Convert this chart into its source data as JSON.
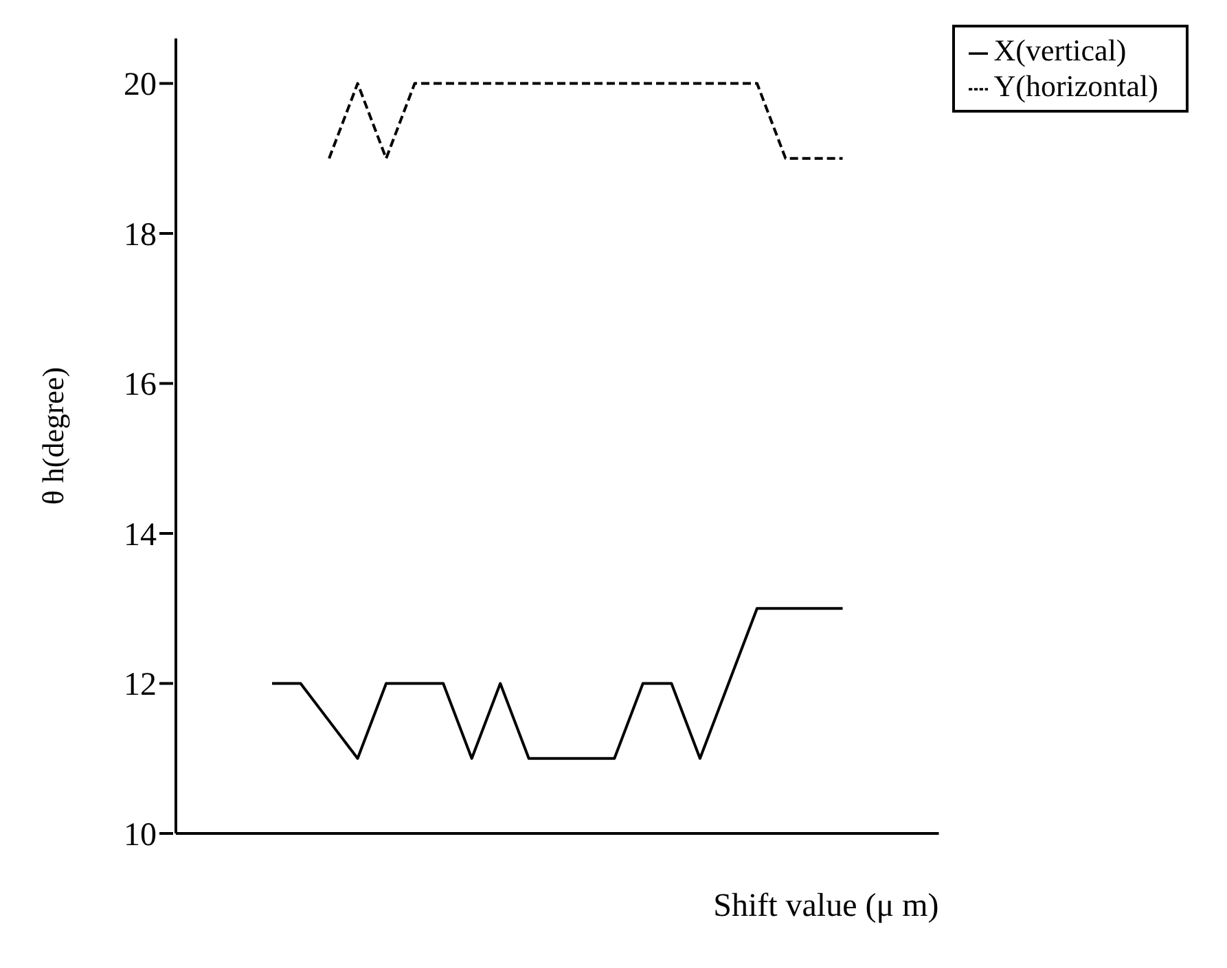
{
  "chart_data": {
    "type": "line",
    "xlabel": "Shift value (μ m)",
    "ylabel": "θ h(degree)",
    "categories": [
      null,
      null,
      null,
      null,
      null,
      null,
      null,
      null,
      null,
      null,
      null,
      null,
      null,
      null,
      null,
      null,
      null,
      null,
      null,
      null,
      null
    ],
    "ylim": [
      10,
      20.6
    ],
    "yticks": [
      10,
      12,
      14,
      16,
      18,
      20
    ],
    "series": [
      {
        "name": "X(vertical)",
        "color": "#000000",
        "line_style": "solid",
        "values": [
          12,
          12,
          11.5,
          11,
          12,
          12,
          12,
          11,
          12,
          11,
          11,
          11,
          11,
          12,
          12,
          11,
          12,
          13,
          13,
          13,
          13
        ]
      },
      {
        "name": "Y(horizontal)",
        "color": "#000000",
        "line_style": "dashed",
        "values": [
          null,
          null,
          19,
          20,
          19,
          20,
          20,
          20,
          20,
          20,
          20,
          20,
          20,
          20,
          20,
          20,
          20,
          20,
          19,
          19,
          19
        ]
      }
    ],
    "grid": false,
    "legend": "top right",
    "marker": "none"
  }
}
